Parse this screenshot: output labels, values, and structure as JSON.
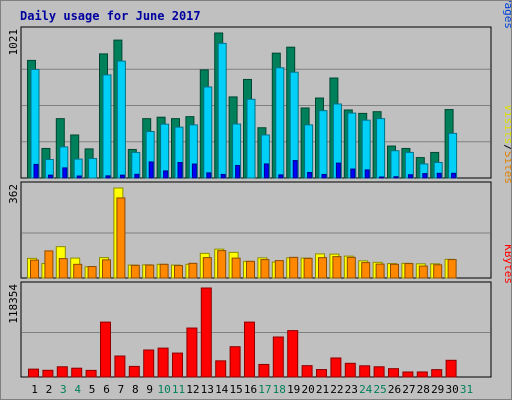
{
  "chart_data": {
    "type": "bar",
    "title": "Daily usage for June 2017",
    "x": [
      "1",
      "2",
      "3",
      "4",
      "5",
      "6",
      "7",
      "8",
      "9",
      "10",
      "11",
      "12",
      "13",
      "14",
      "15",
      "16",
      "17",
      "18",
      "19",
      "20",
      "21",
      "22",
      "23",
      "24",
      "25",
      "26",
      "27",
      "28",
      "29",
      "30",
      "31"
    ],
    "weekend_days": [
      "3",
      "4",
      "10",
      "11",
      "17",
      "18",
      "24",
      "25",
      "31"
    ],
    "panels": [
      {
        "name": "pages-files-hits",
        "ymax_label": "1021",
        "ymax": 1021,
        "legend": [
          {
            "label": "Pages",
            "color": "#0040d8"
          },
          {
            "label": "/",
            "color": "#000000"
          },
          {
            "label": "Files",
            "color": "#0000ff"
          },
          {
            "label": "/",
            "color": "#000000"
          },
          {
            "label": "Hits",
            "color": "#008060"
          }
        ],
        "series": [
          {
            "name": "Hits",
            "color": "#00805a",
            "values": [
              828,
              208,
              418,
              303,
              205,
              874,
              971,
              201,
              418,
              428,
              418,
              432,
              761,
              1021,
              571,
              694,
              354,
              879,
              921,
              493,
              563,
              704,
              479,
              455,
              467,
              225,
              208,
              144,
              180,
              482
            ]
          },
          {
            "name": "Files",
            "color": "#00d0f8",
            "values": [
              764,
              130,
              219,
              133,
              137,
              726,
              823,
              180,
              327,
              379,
              358,
              374,
              641,
              948,
              380,
              554,
              303,
              776,
              745,
              374,
              474,
              521,
              457,
              407,
              418,
              192,
              180,
              99,
              109,
              314
            ]
          },
          {
            "name": "Pages",
            "color": "#0000ff",
            "values": [
              96,
              20,
              71,
              14,
              0,
              15,
              20,
              26,
              113,
              50,
              109,
              98,
              36,
              25,
              88,
              0,
              99,
              22,
              123,
              39,
              25,
              105,
              63,
              57,
              6,
              9,
              23,
              31,
              33,
              33
            ]
          }
        ]
      },
      {
        "name": "sites-visits",
        "ymax_label": "362",
        "ymax": 362,
        "legend": [
          {
            "label": "Sites",
            "color": "#e08000"
          },
          {
            "label": "/",
            "color": "#000000"
          },
          {
            "label": "Visits",
            "color": "#e0e000"
          }
        ],
        "series": [
          {
            "name": "Visits",
            "color": "#ffff00",
            "values": [
              79,
              58,
              126,
              80,
              45,
              82,
              362,
              52,
              53,
              55,
              52,
              55,
              99,
              116,
              103,
              67,
              81,
              64,
              81,
              80,
              97,
              96,
              88,
              69,
              63,
              58,
              59,
              57,
              57,
              75
            ]
          },
          {
            "name": "Sites",
            "color": "#ff8800",
            "values": [
              72,
              109,
              78,
              55,
              46,
              73,
              322,
              51,
              52,
              55,
              50,
              59,
              82,
              110,
              80,
              67,
              74,
              70,
              83,
              79,
              82,
              86,
              83,
              62,
              56,
              55,
              58,
              48,
              53,
              74
            ]
          }
        ]
      },
      {
        "name": "kbytes",
        "ymax_label": "118354",
        "ymax": 118354,
        "legend": [
          {
            "label": "KBytes",
            "color": "#ff0000"
          }
        ],
        "series": [
          {
            "name": "KBytes",
            "color": "#ff0000",
            "values": [
              10458,
              8900,
              13600,
              11700,
              8800,
              73000,
              27900,
              14100,
              35900,
              38400,
              31800,
              65100,
              118354,
              21500,
              40300,
              73000,
              16700,
              53200,
              61700,
              15100,
              9900,
              25300,
              18200,
              14900,
              13600,
              11100,
              6700,
              6700,
              9800,
              22200
            ]
          }
        ]
      }
    ]
  }
}
